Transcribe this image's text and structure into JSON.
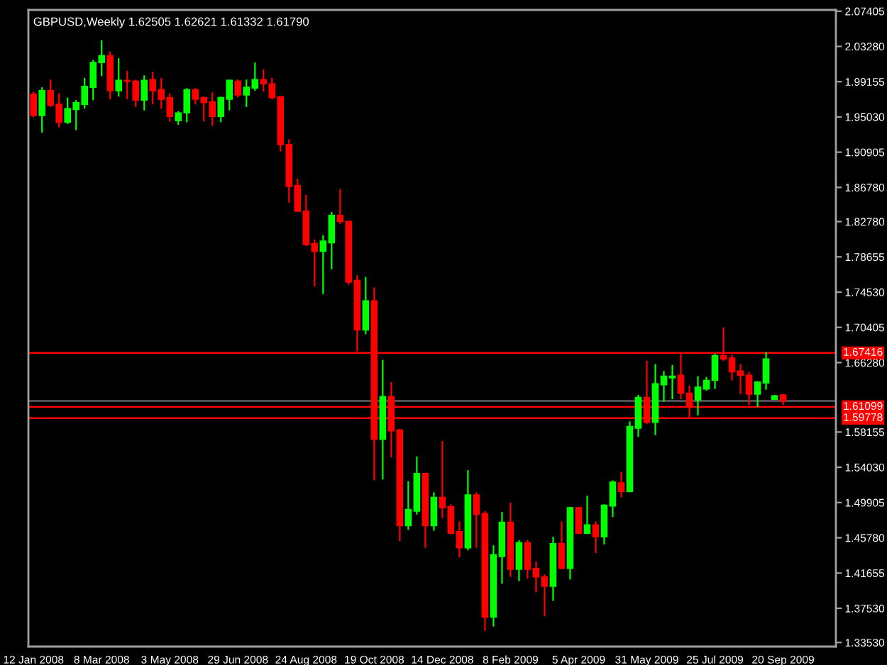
{
  "chart_data": {
    "type": "candlestick",
    "title": "GBPUSD,Weekly 1.62505 1.62621 1.61332 1.61790",
    "categories": [
      "12 Jan 2008",
      null,
      null,
      null,
      null,
      null,
      null,
      null,
      "8 Mar 2008",
      null,
      null,
      null,
      null,
      null,
      null,
      null,
      "3 May 2008",
      null,
      null,
      null,
      null,
      null,
      null,
      null,
      "29 Jun 2008",
      null,
      null,
      null,
      null,
      null,
      null,
      null,
      "24 Aug 2008",
      null,
      null,
      null,
      null,
      null,
      null,
      null,
      "19 Oct 2008",
      null,
      null,
      null,
      null,
      null,
      null,
      null,
      "14 Dec 2008",
      null,
      null,
      null,
      null,
      null,
      null,
      null,
      "8 Feb 2009",
      null,
      null,
      null,
      null,
      null,
      null,
      null,
      "5 Apr 2009",
      null,
      null,
      null,
      null,
      null,
      null,
      null,
      "31 May 2009",
      null,
      null,
      null,
      null,
      null,
      null,
      null,
      "25 Jul 2009",
      null,
      null,
      null,
      null,
      null,
      null,
      null,
      "20 Sep 2009"
    ],
    "ohlc": [
      [
        1.977,
        1.98,
        1.95,
        1.952
      ],
      [
        1.952,
        1.985,
        1.932,
        1.981
      ],
      [
        1.981,
        1.994,
        1.962,
        1.964
      ],
      [
        1.965,
        1.978,
        1.938,
        1.944
      ],
      [
        1.944,
        1.973,
        1.942,
        1.96
      ],
      [
        1.959,
        1.97,
        1.935,
        1.967
      ],
      [
        1.965,
        1.996,
        1.96,
        1.986
      ],
      [
        1.985,
        2.017,
        1.97,
        2.014
      ],
      [
        2.014,
        2.04,
        1.998,
        2.022
      ],
      [
        2.022,
        2.027,
        1.971,
        1.981
      ],
      [
        1.981,
        2.019,
        1.974,
        1.993
      ],
      [
        1.993,
        2.004,
        1.971,
        1.992
      ],
      [
        1.992,
        1.994,
        1.962,
        1.97
      ],
      [
        1.97,
        1.999,
        1.958,
        1.993
      ],
      [
        1.994,
        2.003,
        1.965,
        1.981
      ],
      [
        1.982,
        1.996,
        1.96,
        1.971
      ],
      [
        1.973,
        1.978,
        1.945,
        1.951
      ],
      [
        1.946,
        1.957,
        1.941,
        1.955
      ],
      [
        1.955,
        1.984,
        1.944,
        1.982
      ],
      [
        1.982,
        1.984,
        1.965,
        1.971
      ],
      [
        1.973,
        1.974,
        1.945,
        1.967
      ],
      [
        1.968,
        1.979,
        1.94,
        1.951
      ],
      [
        1.951,
        1.974,
        1.944,
        1.973
      ],
      [
        1.971,
        1.994,
        1.958,
        1.993
      ],
      [
        1.992,
        1.994,
        1.973,
        1.976
      ],
      [
        1.976,
        1.994,
        1.962,
        1.985
      ],
      [
        1.984,
        2.014,
        1.981,
        1.994
      ],
      [
        1.994,
        2.006,
        1.98,
        1.989
      ],
      [
        1.989,
        1.996,
        1.971,
        1.973
      ],
      [
        1.974,
        1.974,
        1.91,
        1.918
      ],
      [
        1.918,
        1.924,
        1.85,
        1.869
      ],
      [
        1.87,
        1.878,
        1.839,
        1.84
      ],
      [
        1.84,
        1.859,
        1.799,
        1.801
      ],
      [
        1.802,
        1.807,
        1.752,
        1.793
      ],
      [
        1.793,
        1.812,
        1.743,
        1.805
      ],
      [
        1.803,
        1.839,
        1.772,
        1.835
      ],
      [
        1.835,
        1.866,
        1.825,
        1.828
      ],
      [
        1.828,
        1.829,
        1.754,
        1.757
      ],
      [
        1.759,
        1.765,
        1.676,
        1.701
      ],
      [
        1.701,
        1.763,
        1.696,
        1.735
      ],
      [
        1.735,
        1.751,
        1.525,
        1.573
      ],
      [
        1.573,
        1.666,
        1.526,
        1.623
      ],
      [
        1.623,
        1.64,
        1.552,
        1.583
      ],
      [
        1.584,
        1.585,
        1.454,
        1.472
      ],
      [
        1.472,
        1.524,
        1.467,
        1.491
      ],
      [
        1.489,
        1.553,
        1.485,
        1.533
      ],
      [
        1.533,
        1.534,
        1.446,
        1.472
      ],
      [
        1.472,
        1.511,
        1.466,
        1.505
      ],
      [
        1.505,
        1.571,
        1.481,
        1.493
      ],
      [
        1.494,
        1.497,
        1.462,
        1.463
      ],
      [
        1.465,
        1.477,
        1.435,
        1.446
      ],
      [
        1.446,
        1.537,
        1.443,
        1.508
      ],
      [
        1.508,
        1.511,
        1.446,
        1.485
      ],
      [
        1.486,
        1.489,
        1.349,
        1.365
      ],
      [
        1.365,
        1.449,
        1.354,
        1.438
      ],
      [
        1.436,
        1.488,
        1.404,
        1.476
      ],
      [
        1.476,
        1.499,
        1.412,
        1.421
      ],
      [
        1.421,
        1.455,
        1.407,
        1.452
      ],
      [
        1.452,
        1.455,
        1.41,
        1.421
      ],
      [
        1.422,
        1.43,
        1.394,
        1.412
      ],
      [
        1.412,
        1.415,
        1.366,
        1.401
      ],
      [
        1.401,
        1.459,
        1.384,
        1.451
      ],
      [
        1.451,
        1.477,
        1.421,
        1.422
      ],
      [
        1.422,
        1.494,
        1.409,
        1.493
      ],
      [
        1.493,
        1.494,
        1.462,
        1.463
      ],
      [
        1.463,
        1.507,
        1.462,
        1.473
      ],
      [
        1.473,
        1.477,
        1.44,
        1.459
      ],
      [
        1.459,
        1.497,
        1.45,
        1.496
      ],
      [
        1.495,
        1.525,
        1.482,
        1.523
      ],
      [
        1.522,
        1.535,
        1.505,
        1.512
      ],
      [
        1.512,
        1.594,
        1.511,
        1.588
      ],
      [
        1.586,
        1.625,
        1.576,
        1.622
      ],
      [
        1.622,
        1.665,
        1.591,
        1.593
      ],
      [
        1.593,
        1.661,
        1.578,
        1.638
      ],
      [
        1.637,
        1.653,
        1.617,
        1.647
      ],
      [
        1.645,
        1.66,
        1.62,
        1.647
      ],
      [
        1.648,
        1.673,
        1.62,
        1.627
      ],
      [
        1.627,
        1.636,
        1.598,
        1.612
      ],
      [
        1.619,
        1.647,
        1.601,
        1.634
      ],
      [
        1.632,
        1.646,
        1.63,
        1.642
      ],
      [
        1.642,
        1.673,
        1.632,
        1.671
      ],
      [
        1.671,
        1.704,
        1.665,
        1.667
      ],
      [
        1.668,
        1.672,
        1.642,
        1.652
      ],
      [
        1.653,
        1.661,
        1.626,
        1.648
      ],
      [
        1.648,
        1.652,
        1.613,
        1.626
      ],
      [
        1.626,
        1.641,
        1.611,
        1.64
      ],
      [
        1.639,
        1.675,
        1.631,
        1.667
      ],
      [
        1.62,
        1.625,
        1.619,
        1.624
      ],
      [
        1.62505,
        1.62621,
        1.61332,
        1.6179
      ]
    ],
    "colors": [
      "#ff0000",
      "#00ff00",
      "#ff0000",
      "#ff0000",
      "#00ff00",
      "#00ff00",
      "#00ff00",
      "#00ff00",
      "#00ff00",
      "#ff0000",
      "#00ff00",
      "#ff0000",
      "#ff0000",
      "#00ff00",
      "#ff0000",
      "#ff0000",
      "#ff0000",
      "#00ff00",
      "#00ff00",
      "#ff0000",
      "#ff0000",
      "#ff0000",
      "#00ff00",
      "#00ff00",
      "#ff0000",
      "#00ff00",
      "#00ff00",
      "#ff0000",
      "#ff0000",
      "#ff0000",
      "#ff0000",
      "#ff0000",
      "#ff0000",
      "#ff0000",
      "#00ff00",
      "#00ff00",
      "#ff0000",
      "#ff0000",
      "#ff0000",
      "#00ff00",
      "#ff0000",
      "#00ff00",
      "#ff0000",
      "#ff0000",
      "#00ff00",
      "#00ff00",
      "#ff0000",
      "#00ff00",
      "#ff0000",
      "#ff0000",
      "#ff0000",
      "#00ff00",
      "#ff0000",
      "#ff0000",
      "#00ff00",
      "#00ff00",
      "#ff0000",
      "#00ff00",
      "#ff0000",
      "#ff0000",
      "#ff0000",
      "#00ff00",
      "#ff0000",
      "#00ff00",
      "#ff0000",
      "#00ff00",
      "#ff0000",
      "#00ff00",
      "#00ff00",
      "#ff0000",
      "#00ff00",
      "#00ff00",
      "#ff0000",
      "#00ff00",
      "#00ff00",
      "#00ff00",
      "#ff0000",
      "#ff0000",
      "#00ff00",
      "#00ff00",
      "#00ff00",
      "#ff0000",
      "#ff0000",
      "#ff0000",
      "#ff0000",
      "#00ff00",
      "#00ff00",
      "#00ff00",
      "#ff0000"
    ],
    "ylim": [
      1.3305,
      2.0755
    ],
    "yticks": [
      2.07405,
      {
        "value": 2.0328,
        "label": "2.03280"
      },
      1.99155,
      {
        "value": 1.9503,
        "label": "1.95030"
      },
      1.90905,
      {
        "value": 1.8678,
        "label": "1.86780"
      },
      {
        "value": 1.8278,
        "label": "1.82780"
      },
      1.78655,
      {
        "value": 1.7453,
        "label": "1.74530"
      },
      1.70405,
      {
        "value": 1.6628,
        "label": "1.66280"
      },
      1.58155,
      {
        "value": 1.5403,
        "label": "1.54030"
      },
      1.49905,
      {
        "value": 1.4578,
        "label": "1.45780"
      },
      1.41655,
      {
        "value": 1.3753,
        "label": "1.37530"
      },
      {
        "value": 1.3353,
        "label": "1.33530"
      }
    ],
    "ref_lines": [
      {
        "axis": "y",
        "value": 1.67416,
        "label": "1.67416",
        "color": "#ff0000"
      },
      {
        "axis": "y",
        "value": 1.61099,
        "label": "1.61099",
        "color": "#ff0000"
      },
      {
        "axis": "y",
        "value": 1.59778,
        "label": "1.59778",
        "color": "#ff0000"
      },
      {
        "axis": "y",
        "value": 1.6179,
        "color": "#5a6066"
      }
    ]
  }
}
